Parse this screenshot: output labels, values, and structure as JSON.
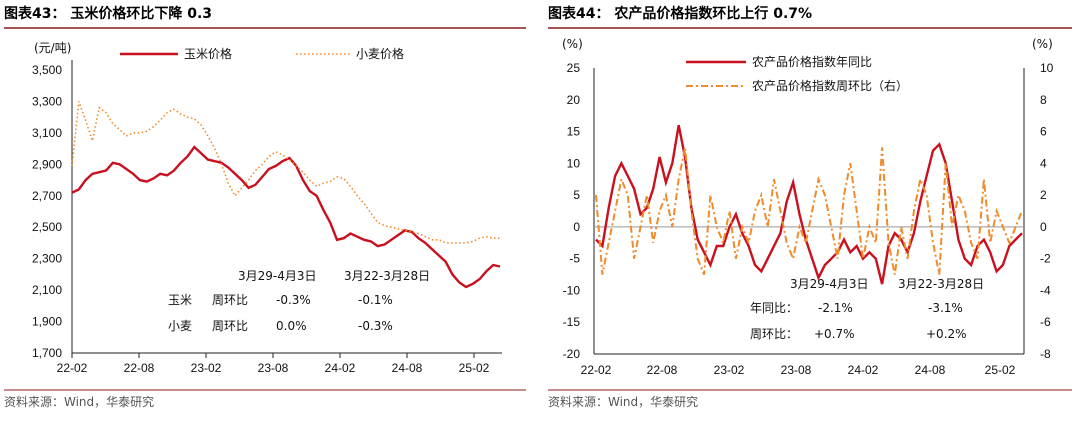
{
  "colors": {
    "red": "#c8101e",
    "orange": "#f08a2a",
    "axis": "#222",
    "rule": "#8b1a1a"
  },
  "chart_data": [
    {
      "type": "line",
      "title": "图表43：  玉米价格环比下降 0.3",
      "ylabel": "(元/吨)",
      "ylim": [
        1700,
        3500
      ],
      "yticks": [
        "3,500",
        "3,300",
        "3,100",
        "2,900",
        "2,700",
        "2,500",
        "2,300",
        "2,100",
        "1,900",
        "1,700"
      ],
      "xticks": [
        "22-02",
        "22-08",
        "23-02",
        "23-08",
        "24-02",
        "24-08",
        "25-02"
      ],
      "source": "资料来源：Wind，华泰研究",
      "series": [
        {
          "name": "玉米价格",
          "style": "solid",
          "color": "#c8101e",
          "values": [
            2720,
            2740,
            2800,
            2840,
            2850,
            2860,
            2910,
            2900,
            2870,
            2840,
            2800,
            2790,
            2810,
            2840,
            2830,
            2860,
            2910,
            2950,
            3010,
            2970,
            2930,
            2920,
            2910,
            2880,
            2840,
            2800,
            2750,
            2770,
            2820,
            2870,
            2890,
            2920,
            2940,
            2890,
            2800,
            2730,
            2700,
            2610,
            2530,
            2420,
            2430,
            2460,
            2440,
            2420,
            2410,
            2380,
            2390,
            2420,
            2450,
            2480,
            2470,
            2430,
            2400,
            2360,
            2320,
            2280,
            2200,
            2150,
            2120,
            2140,
            2170,
            2220,
            2260,
            2250
          ]
        },
        {
          "name": "小麦价格",
          "style": "dotted",
          "color": "#f08a2a",
          "values": [
            2890,
            3300,
            3180,
            3050,
            3260,
            3230,
            3160,
            3120,
            3080,
            3100,
            3100,
            3110,
            3140,
            3180,
            3230,
            3250,
            3220,
            3200,
            3190,
            3150,
            3080,
            3000,
            2900,
            2780,
            2700,
            2750,
            2800,
            2860,
            2900,
            2950,
            2980,
            2960,
            2930,
            2890,
            2850,
            2800,
            2760,
            2780,
            2790,
            2820,
            2810,
            2760,
            2700,
            2650,
            2590,
            2530,
            2510,
            2500,
            2490,
            2480,
            2470,
            2460,
            2440,
            2420,
            2420,
            2400,
            2400,
            2400,
            2400,
            2410,
            2430,
            2440,
            2430,
            2430
          ]
        }
      ],
      "annotations": {
        "period1": "3月29-4月3日",
        "period2": "3月22-3月28日",
        "row1_name": "玉米",
        "row1_metric": "周环比",
        "row1_v1": "-0.3%",
        "row1_v2": "-0.1%",
        "row2_name": "小麦",
        "row2_metric": "周环比",
        "row2_v1": "0.0%",
        "row2_v2": "-0.3%"
      }
    },
    {
      "type": "line",
      "title": "图表44：  农产品价格指数环比上行 0.7%",
      "ylabel_left": "(%)",
      "ylabel_right": "(%)",
      "ylim": [
        -20,
        25
      ],
      "ylim_right": [
        -8,
        10
      ],
      "yticks": [
        "25",
        "20",
        "15",
        "10",
        "5",
        "0",
        "-5",
        "-10",
        "-15",
        "-20"
      ],
      "yticks_right": [
        "10",
        "8",
        "6",
        "4",
        "2",
        "0",
        "-2",
        "-4",
        "-6",
        "-8"
      ],
      "xticks": [
        "22-02",
        "22-08",
        "23-02",
        "23-08",
        "24-02",
        "24-08",
        "25-02"
      ],
      "source": "资料来源：Wind，华泰研究",
      "series": [
        {
          "name": "农产品价格指数年同比",
          "style": "solid",
          "color": "#c8101e",
          "axis": "left",
          "values": [
            -2,
            -3,
            3,
            8,
            10,
            8,
            6,
            2,
            3,
            6,
            11,
            7,
            10,
            16,
            11,
            3,
            -2,
            -4,
            -6,
            -3,
            -3,
            0,
            2,
            -1,
            -3,
            -6,
            -7,
            -5,
            -3,
            -1,
            4,
            7,
            2,
            -2,
            -5,
            -8,
            -6,
            -5,
            -4,
            -2,
            -4,
            -3,
            -5,
            -4,
            -5,
            -9,
            -3,
            -1,
            -2,
            -4,
            -1,
            4,
            8,
            12,
            13,
            10,
            4,
            -2,
            -5,
            -6,
            -3,
            -2,
            -4,
            -7,
            -6,
            -3,
            -2,
            -1
          ]
        },
        {
          "name": "农产品价格指数周环比（右）",
          "style": "dashdot",
          "color": "#f08a2a",
          "axis": "right",
          "values": [
            2,
            -3,
            -1,
            1,
            3,
            2,
            -2,
            0,
            2,
            -1,
            1,
            2,
            0,
            3,
            5,
            1,
            -2,
            -3,
            2,
            0,
            -1,
            1,
            -2,
            0,
            -1,
            1,
            2,
            0,
            3,
            1,
            -1,
            -2,
            0,
            -1,
            1,
            3,
            2,
            0,
            -2,
            2,
            4,
            1,
            -2,
            0,
            -1,
            5,
            -1,
            -3,
            0,
            -2,
            1,
            3,
            2,
            -1,
            -3,
            4,
            0,
            2,
            1,
            -1,
            -2,
            3,
            -1,
            1,
            0,
            -1,
            0,
            1
          ]
        }
      ],
      "annotations": {
        "period1": "3月29-4月3日",
        "period2": "3月22-3月28日",
        "row1_metric": "年同比：",
        "row1_v1": "-2.1%",
        "row1_v2": "-3.1%",
        "row2_metric": "周环比：",
        "row2_v1": "+0.7%",
        "row2_v2": "+0.2%"
      }
    }
  ]
}
